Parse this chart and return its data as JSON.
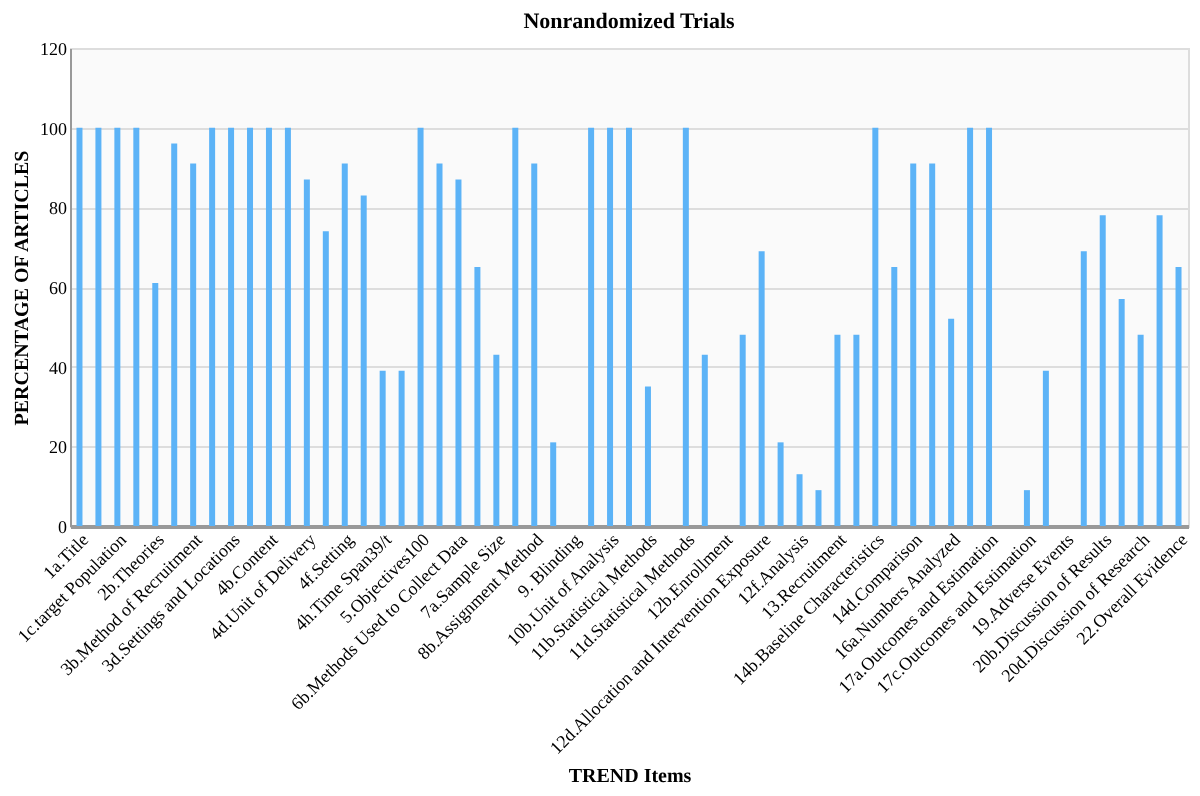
{
  "chart_data": {
    "type": "bar",
    "title": "Nonrandomized Trials",
    "xlabel": "TREND Items",
    "ylabel": "PERCENTAGE OF ARTICLES",
    "categories": [
      "1a.Title",
      null,
      "1c.target Population",
      null,
      "2b.Theories",
      null,
      "3b.Method of Recruitment",
      null,
      "3d.Settings and Locations",
      null,
      "4b.Content",
      null,
      "4d.Unit of Delivery",
      null,
      "4f.Setting",
      null,
      "4h.Time Span39/t",
      null,
      "5.Objectives100",
      null,
      "6b.Methods Used to Collect Data",
      null,
      "7a.Sample Size",
      null,
      "8b.Assignment Method",
      null,
      "9. Blinding",
      null,
      "10b.Unit of Analysis",
      null,
      "11b.Statistical Methods",
      null,
      "11d.Statistical Methods",
      null,
      "12b.Enrollment",
      null,
      "12d.Allocation and Intervention Exposure",
      null,
      "12f.Analysis",
      null,
      "13.Recruitment",
      null,
      "14b.Baseline Characteristics",
      null,
      "14d.Comparison",
      null,
      "16a.Numbers Analyzed",
      null,
      "17a.Outcomes and Estimation",
      null,
      "17c.Outcomes and Estimation",
      null,
      "19.Adverse Events",
      null,
      "20b.Discussion of Results",
      null,
      "20d.Discussion of Research",
      null,
      "22.Overall Evidence"
    ],
    "values": [
      100,
      100,
      100,
      100,
      61,
      96,
      91,
      100,
      100,
      100,
      100,
      100,
      87,
      74,
      91,
      83,
      39,
      39,
      100,
      91,
      87,
      65,
      43,
      100,
      91,
      21,
      0,
      100,
      100,
      100,
      35,
      0,
      100,
      43,
      0,
      48,
      69,
      21,
      13,
      9,
      48,
      48,
      100,
      65,
      91,
      91,
      52,
      100,
      100,
      0,
      9,
      39,
      0,
      69,
      78,
      57,
      48,
      78,
      65
    ],
    "color": "#5cb3f7",
    "ylim": [
      0,
      120
    ],
    "yticks": [
      0,
      20,
      40,
      60,
      80,
      100,
      120
    ],
    "grid": "y"
  }
}
